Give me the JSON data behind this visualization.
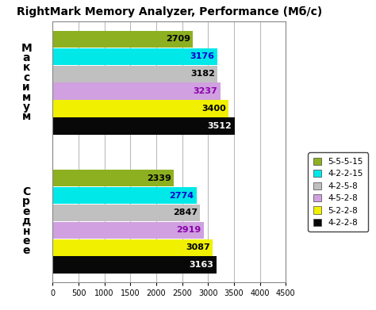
{
  "title": "RightMark Memory Analyzer, Performance (Мб/с)",
  "series": [
    {
      "label": "5-5-5-15",
      "color": "#8db020",
      "max_val": 2709,
      "avg_val": 2339
    },
    {
      "label": "4-2-2-15",
      "color": "#00e8e8",
      "max_val": 3176,
      "avg_val": 2774
    },
    {
      "label": "4-2-5-8",
      "color": "#c0c0c0",
      "max_val": 3182,
      "avg_val": 2847
    },
    {
      "label": "4-5-2-8",
      "color": "#d0a0e0",
      "max_val": 3237,
      "avg_val": 2919
    },
    {
      "label": "5-2-2-8",
      "color": "#f0f000",
      "max_val": 3400,
      "avg_val": 3087
    },
    {
      "label": "4-2-2-8",
      "color": "#080808",
      "max_val": 3512,
      "avg_val": 3163
    }
  ],
  "xlim": [
    0,
    4500
  ],
  "xticks": [
    0,
    500,
    1000,
    1500,
    2000,
    2500,
    3000,
    3500,
    4000,
    4500
  ],
  "ylabel_max": "М\nа\nк\nс\nи\nм\nу\nм",
  "ylabel_avg": "С\nр\nе\nд\nн\nе\nе",
  "bg_color": "#ffffff",
  "grid_color": "#bbbbbb",
  "label_fontsize": 8,
  "title_fontsize": 10
}
